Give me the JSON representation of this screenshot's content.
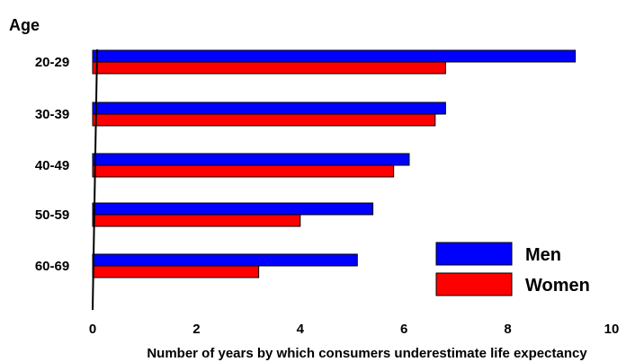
{
  "chart_data": {
    "type": "bar",
    "orientation": "horizontal",
    "title": "",
    "ylabel": "Age",
    "xlabel": "Number of years by which consumers underestimate life expectancy",
    "categories": [
      "20-29",
      "30-39",
      "40-49",
      "50-59",
      "60-69"
    ],
    "series": [
      {
        "name": "Men",
        "color": "#0000ff",
        "values": [
          9.3,
          6.8,
          6.1,
          5.4,
          5.1
        ]
      },
      {
        "name": "Women",
        "color": "#ff0000",
        "values": [
          6.8,
          6.6,
          5.8,
          4.0,
          3.2
        ]
      }
    ],
    "xlim": [
      0,
      10
    ],
    "xticks": [
      "0",
      "2",
      "4",
      "6",
      "8",
      "10"
    ],
    "grid": false,
    "legend_position": "bottom-right"
  }
}
